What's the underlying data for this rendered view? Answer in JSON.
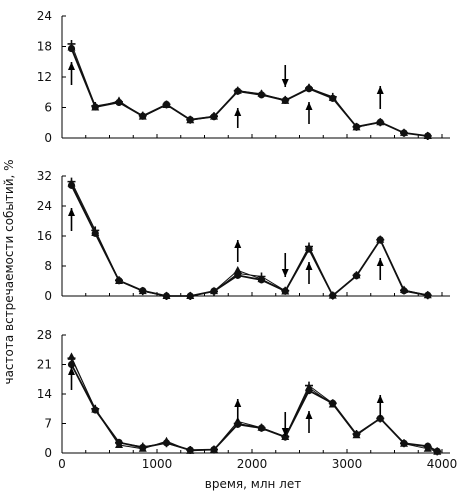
{
  "figure": {
    "ylabel": "частота встречаемости событий, %",
    "xlabel": "время, млн лет"
  },
  "chart_data": [
    {
      "type": "line",
      "xlim": [
        0,
        4000
      ],
      "ylim": [
        0,
        24
      ],
      "yticks": [
        "0",
        "6",
        "12",
        "18",
        "24"
      ],
      "xticks": [],
      "series": [
        {
          "marker": "plus",
          "x": [
            100,
            350,
            600,
            850,
            1100,
            1350,
            1600,
            1850,
            2100,
            2350,
            2600,
            2850,
            3100,
            3350,
            3600,
            3850
          ],
          "y": [
            18.5,
            6.3,
            7.1,
            4.4,
            6.6,
            3.6,
            4.3,
            9.3,
            8.6,
            7.5,
            9.8,
            8.1,
            2.2,
            3.1,
            1.0,
            0.4
          ]
        },
        {
          "marker": "triangle",
          "x": [
            100,
            350,
            600,
            850,
            1100,
            1350,
            1600,
            1850,
            2100,
            2350,
            2600,
            2850,
            3100,
            3350,
            3600,
            3850
          ],
          "y": [
            17.8,
            6.0,
            7.3,
            4.2,
            6.5,
            3.5,
            4.2,
            9.3,
            8.7,
            7.3,
            9.9,
            7.9,
            2.1,
            3.1,
            1.0,
            0.4
          ]
        },
        {
          "marker": "circle",
          "x": [
            100,
            350,
            600,
            850,
            1100,
            1350,
            1600,
            1850,
            2100,
            2350,
            2600,
            2850,
            3100,
            3350,
            3600,
            3850
          ],
          "y": [
            17.6,
            6.1,
            7.0,
            4.3,
            6.6,
            3.6,
            4.2,
            9.2,
            8.5,
            7.4,
            9.7,
            7.8,
            2.2,
            3.1,
            1.0,
            0.4
          ]
        }
      ],
      "arrows": [
        {
          "x": 100,
          "dir": "up"
        },
        {
          "x": 1850,
          "dir": "up"
        },
        {
          "x": 2350,
          "dir": "down"
        },
        {
          "x": 2600,
          "dir": "up"
        },
        {
          "x": 3350,
          "dir": "up"
        }
      ]
    },
    {
      "type": "line",
      "xlim": [
        0,
        4000
      ],
      "ylim": [
        0,
        32
      ],
      "yticks": [
        "0",
        "8",
        "16",
        "24",
        "32"
      ],
      "xticks": [],
      "series": [
        {
          "marker": "plus",
          "x": [
            100,
            350,
            600,
            850,
            1100,
            1350,
            1600,
            1850,
            2100,
            2350,
            2600,
            2850,
            3100,
            3350,
            3600,
            3850
          ],
          "y": [
            30.5,
            17.5,
            4.2,
            1.3,
            0.0,
            0.0,
            1.2,
            6.0,
            5.2,
            1.4,
            13.2,
            0.1,
            5.5,
            15.0,
            1.5,
            0.2
          ]
        },
        {
          "marker": "triangle",
          "x": [
            100,
            350,
            600,
            850,
            1100,
            1350,
            1600,
            1850,
            2100,
            2350,
            2600,
            2850,
            3100,
            3350,
            3600,
            3850
          ],
          "y": [
            30.0,
            16.8,
            4.0,
            1.3,
            0.0,
            0.0,
            1.3,
            6.8,
            4.5,
            1.2,
            12.8,
            0.1,
            5.5,
            15.0,
            1.6,
            0.2
          ]
        },
        {
          "marker": "circle",
          "x": [
            100,
            350,
            600,
            850,
            1100,
            1350,
            1600,
            1850,
            2100,
            2350,
            2600,
            2850,
            3100,
            3350,
            3600,
            3850
          ],
          "y": [
            29.5,
            16.7,
            4.1,
            1.4,
            0.0,
            0.0,
            1.3,
            5.5,
            4.3,
            1.3,
            12.5,
            0.1,
            5.4,
            15.0,
            1.4,
            0.2
          ]
        }
      ],
      "arrows": [
        {
          "x": 100,
          "dir": "up"
        },
        {
          "x": 1850,
          "dir": "up"
        },
        {
          "x": 2350,
          "dir": "down"
        },
        {
          "x": 2600,
          "dir": "up"
        },
        {
          "x": 3350,
          "dir": "up"
        }
      ]
    },
    {
      "type": "line",
      "xlim": [
        0,
        4000
      ],
      "ylim": [
        0,
        28
      ],
      "yticks": [
        "0",
        "7",
        "14",
        "21",
        "28"
      ],
      "xticks": [
        "0",
        "1000",
        "2000",
        "3000",
        "4000"
      ],
      "series": [
        {
          "marker": "plus",
          "x": [
            100,
            350,
            600,
            850,
            1100,
            1350,
            1600,
            1850,
            2100,
            2350,
            2600,
            2850,
            3100,
            3350,
            3600,
            3850,
            3950
          ],
          "y": [
            22.5,
            10.5,
            2.4,
            1.5,
            2.3,
            0.7,
            0.8,
            7.0,
            6.0,
            3.9,
            16.0,
            11.8,
            4.5,
            8.2,
            2.3,
            1.5,
            0.4
          ]
        },
        {
          "marker": "triangle",
          "x": [
            100,
            350,
            600,
            850,
            1100,
            1350,
            1600,
            1850,
            2100,
            2350,
            2600,
            2850,
            3100,
            3350,
            3600,
            3850,
            3950
          ],
          "y": [
            22.8,
            10.3,
            1.9,
            1.0,
            2.8,
            0.5,
            0.8,
            7.5,
            6.0,
            3.8,
            15.5,
            11.5,
            4.2,
            8.2,
            2.2,
            1.0,
            0.3
          ]
        },
        {
          "marker": "circle",
          "x": [
            100,
            350,
            600,
            850,
            1100,
            1350,
            1600,
            1850,
            2100,
            2350,
            2600,
            2850,
            3100,
            3350,
            3600,
            3850,
            3950
          ],
          "y": [
            21.0,
            10.2,
            2.5,
            1.3,
            2.4,
            0.7,
            0.8,
            6.8,
            5.9,
            3.8,
            14.8,
            11.8,
            4.4,
            8.2,
            2.3,
            1.6,
            0.4
          ]
        }
      ],
      "arrows": [
        {
          "x": 100,
          "dir": "up"
        },
        {
          "x": 1850,
          "dir": "up"
        },
        {
          "x": 2350,
          "dir": "down"
        },
        {
          "x": 2600,
          "dir": "up"
        },
        {
          "x": 3350,
          "dir": "up"
        }
      ]
    }
  ]
}
